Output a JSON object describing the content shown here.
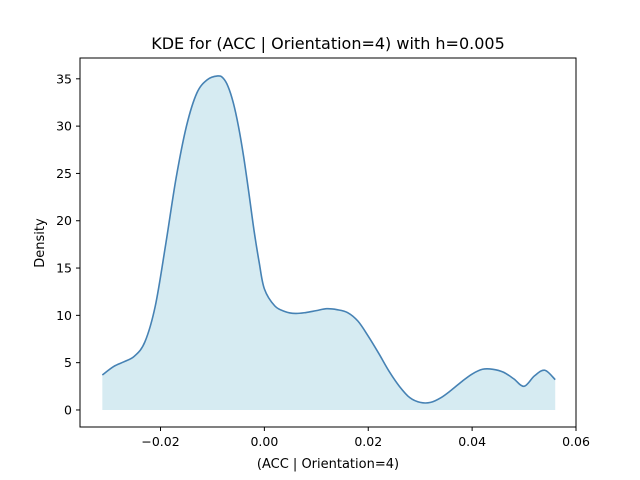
{
  "colors": {
    "line": "#4682b4",
    "fill": "#add8e6",
    "axes": "#000000",
    "background": "#ffffff"
  },
  "chart_data": {
    "type": "area",
    "title": "KDE for (ACC | Orientation=4) with h=0.005",
    "xlabel": "(ACC | Orientation=4)",
    "ylabel": "Density",
    "xlim": [
      -0.0355,
      0.06
    ],
    "ylim": [
      -1.8,
      37.2
    ],
    "grid": false,
    "legend": "none",
    "x_ticks": [
      {
        "value": -0.02,
        "label": "−0.02"
      },
      {
        "value": 0.0,
        "label": "0.00"
      },
      {
        "value": 0.02,
        "label": "0.02"
      },
      {
        "value": 0.04,
        "label": "0.04"
      },
      {
        "value": 0.06,
        "label": "0.06"
      }
    ],
    "y_ticks": [
      {
        "value": 0,
        "label": "0"
      },
      {
        "value": 5,
        "label": "5"
      },
      {
        "value": 10,
        "label": "10"
      },
      {
        "value": 15,
        "label": "15"
      },
      {
        "value": 20,
        "label": "20"
      },
      {
        "value": 25,
        "label": "25"
      },
      {
        "value": 30,
        "label": "30"
      },
      {
        "value": 35,
        "label": "35"
      }
    ],
    "series": [
      {
        "x": [
          -0.0312,
          -0.029,
          -0.027,
          -0.025,
          -0.023,
          -0.021,
          -0.019,
          -0.017,
          -0.015,
          -0.013,
          -0.011,
          -0.009,
          -0.008,
          -0.007,
          -0.006,
          -0.005,
          -0.004,
          -0.003,
          -0.002,
          -0.001,
          0.0,
          0.002,
          0.004,
          0.006,
          0.008,
          0.01,
          0.012,
          0.014,
          0.016,
          0.018,
          0.02,
          0.022,
          0.024,
          0.026,
          0.028,
          0.03,
          0.032,
          0.034,
          0.036,
          0.038,
          0.04,
          0.042,
          0.044,
          0.046,
          0.048,
          0.05,
          0.052,
          0.054,
          0.056
        ],
        "y": [
          3.7,
          4.6,
          5.1,
          5.7,
          7.2,
          11.0,
          17.5,
          24.5,
          30.0,
          33.5,
          34.9,
          35.3,
          35.1,
          34.2,
          32.5,
          30.0,
          26.8,
          23.0,
          19.0,
          15.6,
          12.8,
          11.0,
          10.4,
          10.2,
          10.3,
          10.5,
          10.7,
          10.6,
          10.3,
          9.4,
          7.8,
          6.0,
          4.1,
          2.5,
          1.3,
          0.8,
          0.8,
          1.3,
          2.1,
          3.0,
          3.8,
          4.3,
          4.3,
          4.0,
          3.3,
          2.5,
          3.6,
          4.2,
          3.2
        ]
      }
    ]
  }
}
